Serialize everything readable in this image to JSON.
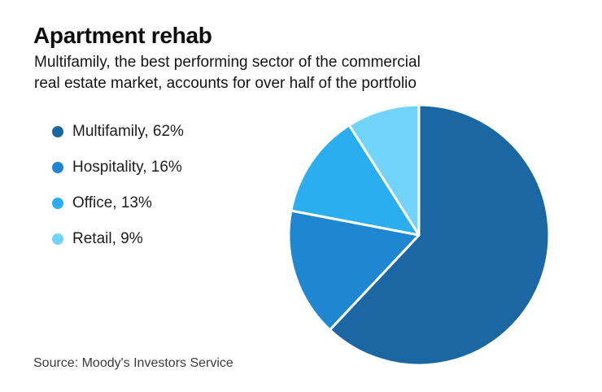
{
  "header": {
    "title": "Apartment rehab",
    "subtitle_line1": "Multifamily, the best performing sector of the commercial",
    "subtitle_line2": "real estate market, accounts for over half of the portfolio"
  },
  "chart_data": {
    "type": "pie",
    "title": "Apartment rehab",
    "categories": [
      "Multifamily",
      "Hospitality",
      "Office",
      "Retail"
    ],
    "values": [
      62,
      16,
      13,
      9
    ],
    "unit": "%",
    "colors": [
      "#1A67A4",
      "#1F86D1",
      "#2BAEF0",
      "#73D4FB"
    ],
    "legend_labels": [
      "Multifamily, 62%",
      "Hospitality, 16%",
      "Office, 13%",
      "Retail, 9%"
    ],
    "legend_position": "left",
    "start_angle_deg": 0,
    "direction": "clockwise",
    "separator_color": "#ffffff",
    "separator_width": 3,
    "radius_px": 160
  },
  "footer": {
    "source": "Source: Moody's Investors Service"
  }
}
